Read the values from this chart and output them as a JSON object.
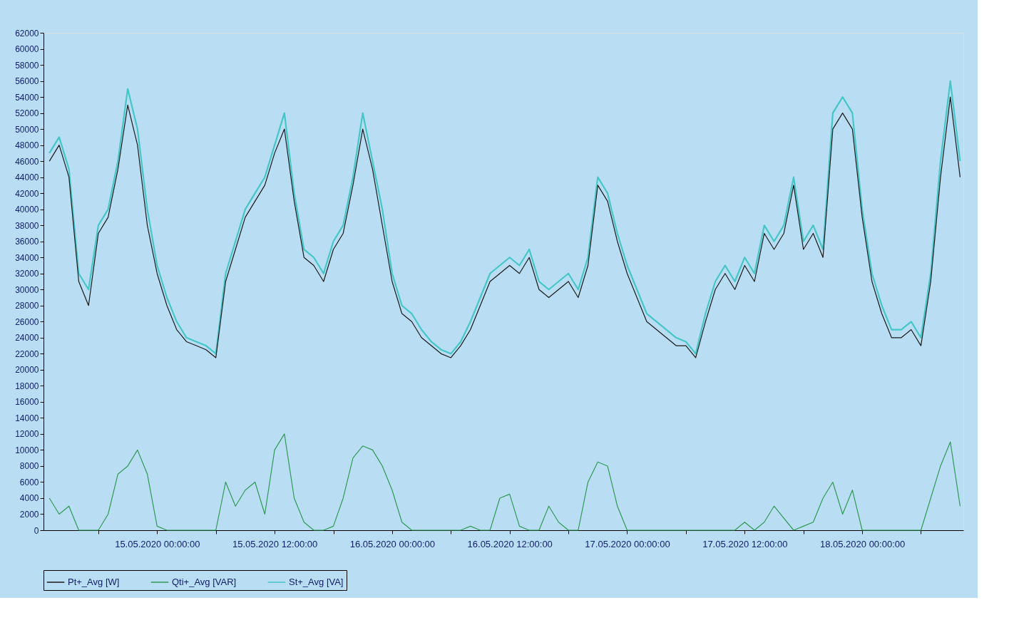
{
  "chart_data": {
    "type": "line",
    "x": [
      "2020-05-14T13:00",
      "2020-05-14T14:00",
      "2020-05-14T15:00",
      "2020-05-14T16:00",
      "2020-05-14T17:00",
      "2020-05-14T18:00",
      "2020-05-14T19:00",
      "2020-05-14T20:00",
      "2020-05-14T21:00",
      "2020-05-14T22:00",
      "2020-05-14T23:00",
      "2020-05-15T00:00",
      "2020-05-15T01:00",
      "2020-05-15T02:00",
      "2020-05-15T03:00",
      "2020-05-15T04:00",
      "2020-05-15T05:00",
      "2020-05-15T06:00",
      "2020-05-15T07:00",
      "2020-05-15T08:00",
      "2020-05-15T09:00",
      "2020-05-15T10:00",
      "2020-05-15T11:00",
      "2020-05-15T12:00",
      "2020-05-15T13:00",
      "2020-05-15T14:00",
      "2020-05-15T15:00",
      "2020-05-15T16:00",
      "2020-05-15T17:00",
      "2020-05-15T18:00",
      "2020-05-15T19:00",
      "2020-05-15T20:00",
      "2020-05-15T21:00",
      "2020-05-15T22:00",
      "2020-05-15T23:00",
      "2020-05-16T00:00",
      "2020-05-16T01:00",
      "2020-05-16T02:00",
      "2020-05-16T03:00",
      "2020-05-16T04:00",
      "2020-05-16T05:00",
      "2020-05-16T06:00",
      "2020-05-16T07:00",
      "2020-05-16T08:00",
      "2020-05-16T09:00",
      "2020-05-16T10:00",
      "2020-05-16T11:00",
      "2020-05-16T12:00",
      "2020-05-16T13:00",
      "2020-05-16T14:00",
      "2020-05-16T15:00",
      "2020-05-16T16:00",
      "2020-05-16T17:00",
      "2020-05-16T18:00",
      "2020-05-16T19:00",
      "2020-05-16T20:00",
      "2020-05-16T21:00",
      "2020-05-16T22:00",
      "2020-05-16T23:00",
      "2020-05-17T00:00",
      "2020-05-17T01:00",
      "2020-05-17T02:00",
      "2020-05-17T03:00",
      "2020-05-17T04:00",
      "2020-05-17T05:00",
      "2020-05-17T06:00",
      "2020-05-17T07:00",
      "2020-05-17T08:00",
      "2020-05-17T09:00",
      "2020-05-17T10:00",
      "2020-05-17T11:00",
      "2020-05-17T12:00",
      "2020-05-17T13:00",
      "2020-05-17T14:00",
      "2020-05-17T15:00",
      "2020-05-17T16:00",
      "2020-05-17T17:00",
      "2020-05-17T18:00",
      "2020-05-17T19:00",
      "2020-05-17T20:00",
      "2020-05-17T21:00",
      "2020-05-17T22:00",
      "2020-05-17T23:00",
      "2020-05-18T00:00",
      "2020-05-18T01:00",
      "2020-05-18T02:00",
      "2020-05-18T03:00",
      "2020-05-18T04:00",
      "2020-05-18T05:00",
      "2020-05-18T06:00",
      "2020-05-18T07:00",
      "2020-05-18T08:00",
      "2020-05-18T09:00",
      "2020-05-18T10:00"
    ],
    "series": [
      {
        "name": "Pt+_Avg [W]",
        "color": "#1a1a1a",
        "values": [
          46000,
          48000,
          44000,
          31000,
          28000,
          37000,
          39000,
          45000,
          53000,
          48000,
          38000,
          32000,
          28000,
          25000,
          23500,
          23000,
          22500,
          21500,
          31000,
          35000,
          39000,
          41000,
          43000,
          47000,
          50000,
          41000,
          34000,
          33000,
          31000,
          35000,
          37000,
          43000,
          50000,
          45000,
          38000,
          31000,
          27000,
          26000,
          24000,
          23000,
          22000,
          21500,
          23000,
          25000,
          28000,
          31000,
          32000,
          33000,
          32000,
          34000,
          30000,
          29000,
          30000,
          31000,
          29000,
          33000,
          43000,
          41000,
          36000,
          32000,
          29000,
          26000,
          25000,
          24000,
          23000,
          23000,
          21500,
          26000,
          30000,
          32000,
          30000,
          33000,
          31000,
          37000,
          35000,
          37000,
          43000,
          35000,
          37000,
          34000,
          50000,
          52000,
          50000,
          39000,
          31000,
          27000,
          24000,
          24000,
          25000,
          23000,
          31000,
          44000,
          54000,
          44000
        ]
      },
      {
        "name": "Qti+_Avg [VAR]",
        "color": "#2f9a55",
        "values": [
          4000,
          2000,
          3000,
          0,
          0,
          0,
          2000,
          7000,
          8000,
          10000,
          7000,
          500,
          0,
          0,
          0,
          0,
          0,
          0,
          6000,
          3000,
          5000,
          6000,
          2000,
          10000,
          12000,
          4000,
          1000,
          0,
          0,
          500,
          4000,
          9000,
          10500,
          10000,
          8000,
          5000,
          1000,
          0,
          0,
          0,
          0,
          0,
          0,
          500,
          0,
          0,
          4000,
          4500,
          500,
          0,
          0,
          3000,
          1000,
          0,
          0,
          6000,
          8500,
          8000,
          3000,
          0,
          0,
          0,
          0,
          0,
          0,
          0,
          0,
          0,
          0,
          0,
          0,
          1000,
          0,
          1000,
          3000,
          1500,
          0,
          500,
          1000,
          4000,
          6000,
          2000,
          5000,
          0,
          0,
          0,
          0,
          0,
          0,
          0,
          4000,
          8000,
          11000,
          3000
        ]
      },
      {
        "name": "St+_Avg [VA]",
        "color": "#45c6c8",
        "values": [
          47000,
          49000,
          45000,
          32000,
          30000,
          38000,
          40000,
          46000,
          55000,
          50000,
          40000,
          33000,
          29000,
          26000,
          24000,
          23500,
          23000,
          22000,
          32000,
          36000,
          40000,
          42000,
          44000,
          48000,
          52000,
          42000,
          35000,
          34000,
          32000,
          36000,
          38000,
          44000,
          52000,
          46000,
          40000,
          32000,
          28000,
          27000,
          25000,
          23500,
          22500,
          22000,
          23500,
          26000,
          29000,
          32000,
          33000,
          34000,
          33000,
          35000,
          31000,
          30000,
          31000,
          32000,
          30000,
          34000,
          44000,
          42000,
          37000,
          33000,
          30000,
          27000,
          26000,
          25000,
          24000,
          23500,
          22000,
          27000,
          31000,
          33000,
          31000,
          34000,
          32000,
          38000,
          36000,
          38000,
          44000,
          36000,
          38000,
          35000,
          52000,
          54000,
          52000,
          40000,
          32000,
          28000,
          25000,
          25000,
          26000,
          24000,
          32000,
          46000,
          56000,
          46000
        ]
      }
    ],
    "xlim": [
      "2020-05-14T12:24",
      "2020-05-18T10:20"
    ],
    "xticks": [
      {
        "value": "2020-05-14T18:00",
        "label": null
      },
      {
        "value": "2020-05-15T00:00",
        "label": "15.05.2020 00:00:00"
      },
      {
        "value": "2020-05-15T06:00",
        "label": null
      },
      {
        "value": "2020-05-15T12:00",
        "label": "15.05.2020 12:00:00"
      },
      {
        "value": "2020-05-15T18:00",
        "label": null
      },
      {
        "value": "2020-05-16T00:00",
        "label": "16.05.2020 00:00:00"
      },
      {
        "value": "2020-05-16T06:00",
        "label": null
      },
      {
        "value": "2020-05-16T12:00",
        "label": "16.05.2020 12:00:00"
      },
      {
        "value": "2020-05-16T18:00",
        "label": null
      },
      {
        "value": "2020-05-17T00:00",
        "label": "17.05.2020 00:00:00"
      },
      {
        "value": "2020-05-17T06:00",
        "label": null
      },
      {
        "value": "2020-05-17T12:00",
        "label": "17.05.2020 12:00:00"
      },
      {
        "value": "2020-05-17T18:00",
        "label": null
      },
      {
        "value": "2020-05-18T00:00",
        "label": "18.05.2020 00:00:00"
      },
      {
        "value": "2020-05-18T06:00",
        "label": null
      }
    ],
    "ylim": [
      0,
      62000
    ],
    "yticks": [
      0,
      2000,
      4000,
      6000,
      8000,
      10000,
      12000,
      14000,
      16000,
      18000,
      20000,
      22000,
      24000,
      26000,
      28000,
      30000,
      32000,
      34000,
      36000,
      38000,
      40000,
      42000,
      44000,
      46000,
      48000,
      50000,
      52000,
      54000,
      56000,
      58000,
      60000,
      62000
    ],
    "grid": false,
    "legend": "bottom",
    "marker": "none",
    "line_style": "solid"
  }
}
